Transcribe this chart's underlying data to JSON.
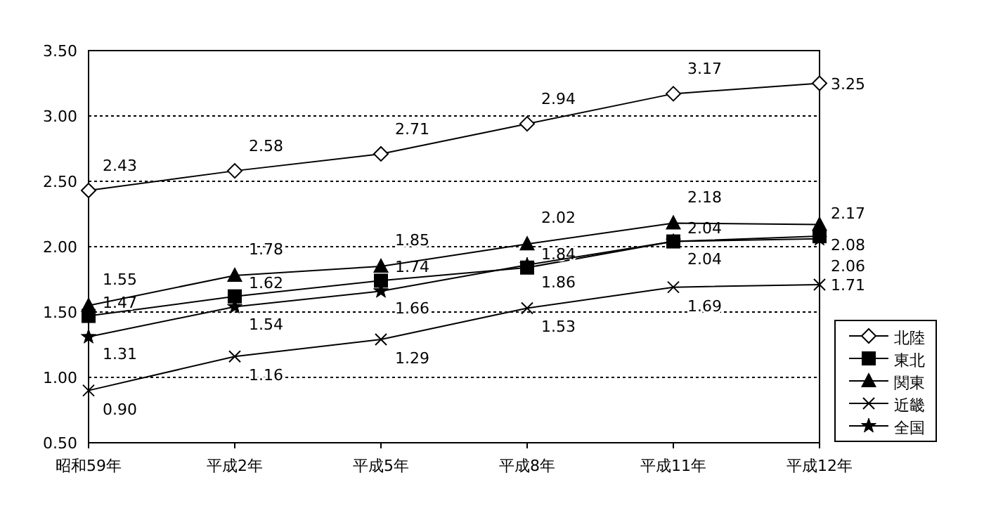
{
  "chart_data": {
    "type": "line",
    "categories": [
      "昭和59年",
      "平成2年",
      "平成5年",
      "平成8年",
      "平成11年",
      "平成12年"
    ],
    "ylim": [
      0.5,
      3.5
    ],
    "yticks": [
      {
        "value": 0.5,
        "label": "0.50"
      },
      {
        "value": 1.0,
        "label": "1.00"
      },
      {
        "value": 1.5,
        "label": "1.50"
      },
      {
        "value": 2.0,
        "label": "2.00"
      },
      {
        "value": 2.5,
        "label": "2.50"
      },
      {
        "value": 3.0,
        "label": "3.00"
      },
      {
        "value": 3.5,
        "label": "3.50"
      }
    ],
    "grid": "y",
    "legend": "bottom right",
    "series": [
      {
        "name": "北陸",
        "color": "#000000",
        "marker": "diamond",
        "values": [
          2.43,
          2.58,
          2.71,
          2.94,
          3.17,
          3.25
        ],
        "value_labels": [
          "2.43",
          "2.58",
          "2.71",
          "2.94",
          "3.17",
          "3.25"
        ]
      },
      {
        "name": "東北",
        "color": "#000000",
        "marker": "square",
        "values": [
          1.47,
          1.62,
          1.74,
          1.84,
          2.04,
          2.08
        ],
        "value_labels": [
          "1.47",
          "1.62",
          "1.74",
          "1.84",
          "2.04",
          "2.08"
        ]
      },
      {
        "name": "関東",
        "color": "#000000",
        "marker": "triangle",
        "values": [
          1.55,
          1.78,
          1.85,
          2.02,
          2.18,
          2.17
        ],
        "value_labels": [
          "1.55",
          "1.78",
          "1.85",
          "2.02",
          "2.18",
          "2.17"
        ]
      },
      {
        "name": "近畿",
        "color": "#000000",
        "marker": "cross",
        "values": [
          0.9,
          1.16,
          1.29,
          1.53,
          1.69,
          1.71
        ],
        "value_labels": [
          "0.90",
          "1.16",
          "1.29",
          "1.53",
          "1.69",
          "1.71"
        ]
      },
      {
        "name": "全国",
        "color": "#000000",
        "marker": "star",
        "values": [
          1.31,
          1.54,
          1.66,
          1.86,
          2.04,
          2.06
        ],
        "value_labels": [
          "1.31",
          "1.54",
          "1.66",
          "1.86",
          "2.04",
          "2.06"
        ]
      }
    ]
  }
}
